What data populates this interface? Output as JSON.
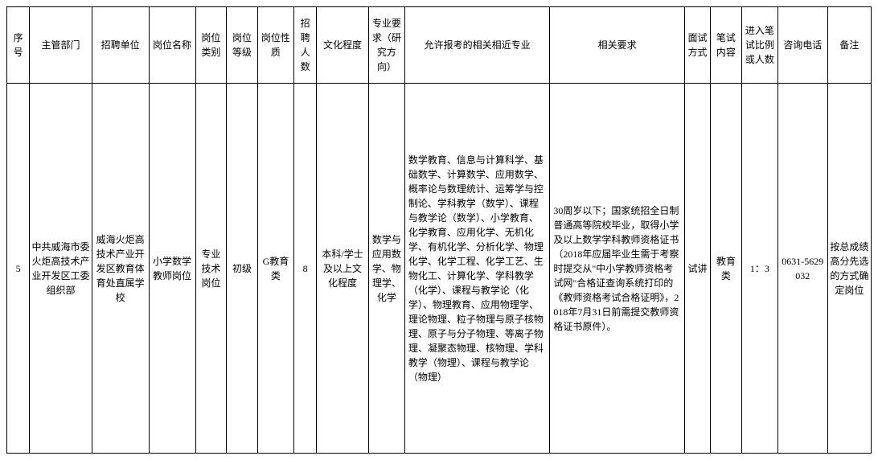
{
  "headers": {
    "seq": "序号",
    "dept": "主管部门",
    "unit": "招聘单位",
    "posName": "岗位名称",
    "posCategory": "岗位类别",
    "posLevel": "岗位等级",
    "posNature": "岗位性质",
    "recruitNum": "招聘人数",
    "education": "文化程度",
    "majorReq": "专业要求（研究方向）",
    "allowedMajor": "允许报考的相关相近专业",
    "relatedReq": "相关要求",
    "interview": "面试方式",
    "written": "笔试内容",
    "ratio": "进入笔试比例或人数",
    "phone": "咨询电话",
    "remark": "备注"
  },
  "row": {
    "seq": "5",
    "dept": "中共威海市委火炬高技术产业开发区工委组织部",
    "unit": "威海火炬高技术产业开发区教育体育处直属学校",
    "posName": "小学数学教师岗位",
    "posCategory": "专业技术岗位",
    "posLevel": "初级",
    "posNature": "G教育类",
    "recruitNum": "8",
    "education": "本科/学士及以上文化程度",
    "majorReq": "数学与应用数学、物理学、化学",
    "allowedMajor": "数学教育、信息与计算科学、基础数学、计算数学、应用数学、概率论与数理统计、运筹学与控制论、学科教学（数学）、课程与教学论（数学）、小学教育、化学教育、应用化学、无机化学、有机化学、分析化学、物理化学、化学工程、化学工艺、生物化工、计算化学、学科教学（化学）、课程与教学论（化学）、物理教育、应用物理学、理论物理、粒子物理与原子核物理、原子与分子物理、等离子物理、凝聚态物理、核物理、学科教学（物理）、课程与教学论（物理）",
    "relatedReq": "30周岁以下；国家统招全日制普通高等院校毕业，取得小学及以上数学学科教师资格证书（2018年应届毕业生需于考察时提交从\"中小学教师资格考试网\"合格证查询系统打印的《教师资格考试合格证明》，2018年7月31日前需提交教师资格证书原件）。",
    "interview": "试讲",
    "written": "教育类",
    "ratio": "1：3",
    "phone": "0631-5629032",
    "remark": "按总成绩高分先选的方式确定岗位"
  },
  "styling": {
    "borderColor": "#000000",
    "backgroundColor": "#ffffff",
    "textColor": "#000000",
    "fontSize": 12,
    "fontFamily": "SimSun",
    "headerHeight": 95,
    "dataRowHeight": 460
  }
}
